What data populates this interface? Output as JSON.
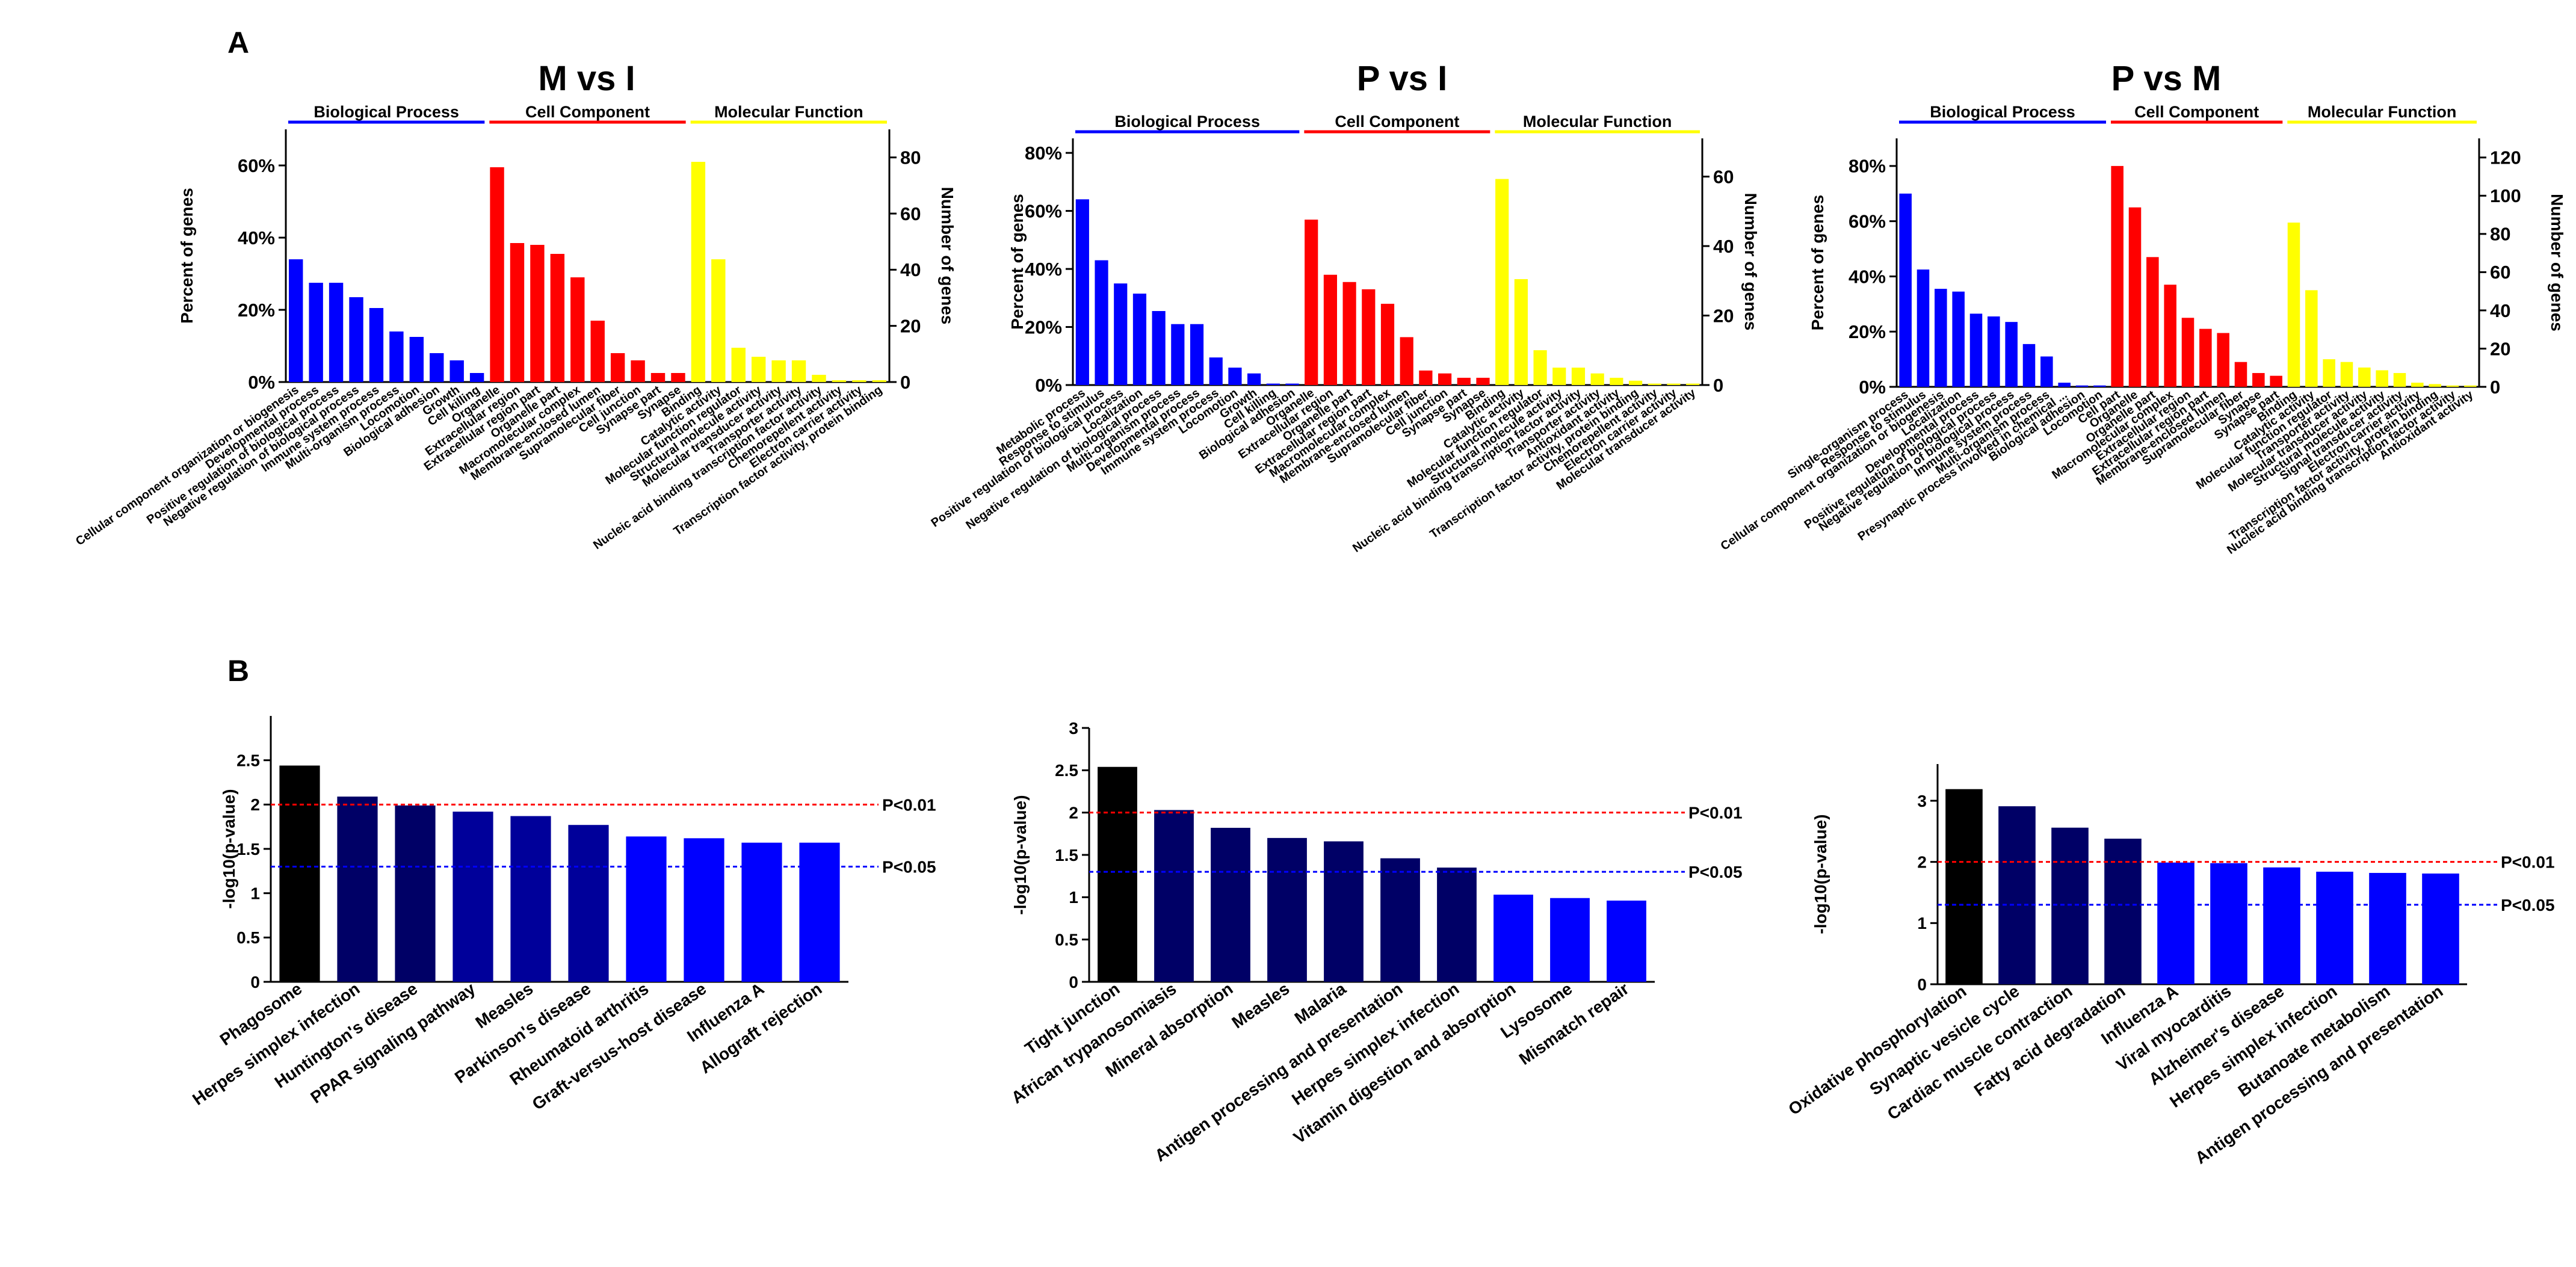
{
  "panel_labels": {
    "a": "A",
    "b": "B"
  },
  "colors": {
    "biological": "#0000ff",
    "cellular": "#ff0000",
    "molecular": "#ffff00",
    "black": "#000000",
    "navy": "#000066",
    "dark_blue": "#00009a",
    "blue": "#0000ff",
    "p01_line": "#ff0000",
    "p05_line": "#0000ff"
  },
  "chart_data": [
    {
      "id": "go_m_vs_i",
      "type": "bar",
      "title": "M vs I",
      "ylabel": "Percent of genes",
      "y2label": "Number of genes",
      "ylim": [
        0,
        70
      ],
      "yticks": [
        0,
        20,
        40,
        60
      ],
      "ytick_labels": [
        "0%",
        "20%",
        "40%",
        "60%"
      ],
      "y2lim": [
        0,
        90
      ],
      "y2ticks": [
        0,
        20,
        40,
        60,
        80
      ],
      "groups": [
        {
          "name": "Biological Process",
          "color": "biological",
          "start": 0,
          "count": 10
        },
        {
          "name": "Cell Component",
          "color": "cellular",
          "start": 10,
          "count": 10
        },
        {
          "name": "Molecular Function",
          "color": "molecular",
          "start": 20,
          "count": 10
        }
      ],
      "categories": [
        "Cellular component organization or biogenesis",
        "Developmental process",
        "Positive regulation of biological process",
        "Negative regulation of biological process",
        "Immune system process",
        "Multi-organism process",
        "Locomotion",
        "Biological adhesion",
        "Growth",
        "Cell killing",
        "Organelle",
        "Extracellular region",
        "Extracellular region part",
        "Organelle part",
        "Macromolecular complex",
        "Membrane-enclosed lumen",
        "Supramolecular fiber",
        "Cell junction",
        "Synapse part",
        "Synapse",
        "Binding",
        "Catalytic activity",
        "Molecular function regulator",
        "Structural molecule activity",
        "Molecular transducer activity",
        "Transporter activity",
        "Nucleic acid binding transcription factor activity",
        "Chemorepellent activity",
        "Electron carrier activity",
        "Transcription factor activity, protein binding"
      ],
      "values": [
        34,
        27.5,
        27.5,
        23.5,
        20.5,
        14,
        12.5,
        8,
        6,
        2.5,
        59.5,
        38.5,
        38,
        35.5,
        29,
        17,
        8,
        6,
        2.5,
        2.5,
        61,
        34,
        9.5,
        7,
        6,
        6,
        2,
        0.5,
        0.5,
        0.5
      ]
    },
    {
      "id": "go_p_vs_i",
      "type": "bar",
      "title": "P vs I",
      "ylabel": "Percent of genes",
      "y2label": "Number of genes",
      "ylim": [
        0,
        85
      ],
      "yticks": [
        0,
        20,
        40,
        60,
        80
      ],
      "ytick_labels": [
        "0%",
        "20%",
        "40%",
        "60%",
        "80%"
      ],
      "y2lim": [
        0,
        71
      ],
      "y2ticks": [
        0,
        20,
        40,
        60
      ],
      "groups": [
        {
          "name": "Biological Process",
          "color": "biological",
          "start": 0,
          "count": 12
        },
        {
          "name": "Cell Component",
          "color": "cellular",
          "start": 12,
          "count": 10
        },
        {
          "name": "Molecular Function",
          "color": "molecular",
          "start": 22,
          "count": 11
        }
      ],
      "categories": [
        "Metabolic process",
        "Response to stimulus",
        "Positive regulation of biological process",
        "Localization",
        "Negative regulation of biological process",
        "Multi-organism process",
        "Developmental process",
        "Immune system process",
        "Locomotion",
        "Growth",
        "Cell killing",
        "Biological adhesion",
        "Organelle",
        "Extracellular region",
        "Organelle part",
        "Extracellular region part",
        "Macromolecular complex",
        "Membrane-enclosed lumen",
        "Supramolecular fiber",
        "Cell junction",
        "Synapse part",
        "Synapse",
        "Binding",
        "Catalytic activity",
        "Molecular function regulator",
        "Structural molecule activity",
        "Nucleic acid binding transcription factor activity",
        "Transporter activity",
        "Antioxidant activity",
        "Transcription factor activity, protein binding",
        "Chemorepellent activity",
        "Electron carrier activity",
        "Molecular transducer activity"
      ],
      "values": [
        64,
        43,
        35,
        31.5,
        25.5,
        21,
        21,
        9.5,
        6,
        4,
        0.5,
        0.5,
        57,
        38,
        35.5,
        33,
        28,
        16.5,
        5,
        4,
        2.5,
        2.5,
        71,
        36.5,
        12,
        6,
        6,
        4,
        2.5,
        1.5,
        0.5,
        0.5,
        0.5
      ]
    },
    {
      "id": "go_p_vs_m",
      "type": "bar",
      "title": "P vs M",
      "ylabel": "Percent of genes",
      "y2label": "Number of genes",
      "ylim": [
        0,
        90
      ],
      "yticks": [
        0,
        20,
        40,
        60,
        80
      ],
      "ytick_labels": [
        "0%",
        "20%",
        "40%",
        "60%",
        "80%"
      ],
      "y2lim": [
        0,
        130
      ],
      "y2ticks": [
        0,
        20,
        40,
        60,
        80,
        100,
        120
      ],
      "groups": [
        {
          "name": "Biological Process",
          "color": "biological",
          "start": 0,
          "count": 12
        },
        {
          "name": "Cell Component",
          "color": "cellular",
          "start": 12,
          "count": 10
        },
        {
          "name": "Molecular Function",
          "color": "molecular",
          "start": 22,
          "count": 11
        }
      ],
      "categories": [
        "Single-organism process",
        "Response to stimulus",
        "Cellular component organization or biogenesis",
        "Localization",
        "Developmental process",
        "Positive regulation of biological process",
        "Negative regulation of biological process",
        "Immune system process",
        "Multi-organism process",
        "Presynaptic process involved in chemical ...",
        "Biological adhesion",
        "Locomotion",
        "Cell part",
        "Organelle",
        "Organelle part",
        "Macromolecular complex",
        "Extracellular region",
        "Extracellular region part",
        "Membrane-enclosed lumen",
        "Supramolecular fiber",
        "Synapse",
        "Synapse part",
        "Binding",
        "Catalytic activity",
        "Molecular function regulator",
        "Transporter activity",
        "Molecular transducer activity",
        "Structural molecule activity",
        "Signal transducer activity",
        "Electron carrier activity",
        "Transcription factor activity, protein binding",
        "Nucleic acid binding transcription factor activity",
        "Antioxidant activity"
      ],
      "values": [
        70,
        42.5,
        35.5,
        34.5,
        26.5,
        25.5,
        23.5,
        15.5,
        11,
        1.5,
        0.5,
        0.5,
        80,
        65,
        47,
        37,
        25,
        21,
        19.5,
        9,
        5,
        4,
        59.5,
        35,
        10,
        9,
        7,
        6,
        5,
        1.5,
        1,
        0.5,
        0.5
      ]
    },
    {
      "id": "kegg_m_vs_i",
      "type": "bar",
      "title": "",
      "ylabel": "-log10(p-value)",
      "ylim": [
        0,
        3
      ],
      "yticks": [
        0,
        0.5,
        1,
        1.5,
        2,
        2.5
      ],
      "ytick_labels": [
        "0",
        "0.5",
        "1",
        "1.5",
        "2",
        "2.5"
      ],
      "categories": [
        "Phagosome",
        "Herpes simplex infection",
        "Huntington's disease",
        "PPAR signaling pathway",
        "Measles",
        "Parkinson's disease",
        "Rheumatoid arthritis",
        "Graft-versus-host disease",
        "Influenza A",
        "Allograft rejection"
      ],
      "values": [
        2.44,
        2.09,
        1.99,
        1.92,
        1.87,
        1.77,
        1.64,
        1.62,
        1.57,
        1.57
      ],
      "bar_colors": [
        "black",
        "navy",
        "navy",
        "dark_blue",
        "dark_blue",
        "dark_blue",
        "blue",
        "blue",
        "blue",
        "blue"
      ],
      "thresholds": [
        {
          "value": 2,
          "label": "P<0.01",
          "color": "p01_line"
        },
        {
          "value": 1.3,
          "label": "P<0.05",
          "color": "p05_line"
        }
      ]
    },
    {
      "id": "kegg_p_vs_i",
      "type": "bar",
      "title": "",
      "ylabel": "-log10(p-value)",
      "ylim": [
        0,
        3
      ],
      "yticks": [
        0,
        0.5,
        1,
        1.5,
        2,
        2.5,
        3
      ],
      "ytick_labels": [
        "0",
        "0.5",
        "1",
        "1.5",
        "2",
        "2.5",
        "3"
      ],
      "categories": [
        "Tight junction",
        "African trypanosomiasis",
        "Mineral absorption",
        "Measles",
        "Malaria",
        "Antigen processing and presentation",
        "Herpes simplex infection",
        "Vitamin digestion and absorption",
        "Lysosome",
        "Mismatch repair"
      ],
      "values": [
        2.54,
        2.03,
        1.82,
        1.7,
        1.66,
        1.46,
        1.35,
        1.03,
        0.99,
        0.96
      ],
      "bar_colors": [
        "black",
        "navy",
        "navy",
        "navy",
        "navy",
        "navy",
        "navy",
        "blue",
        "blue",
        "blue"
      ],
      "thresholds": [
        {
          "value": 2,
          "label": "P<0.01",
          "color": "p01_line"
        },
        {
          "value": 1.3,
          "label": "P<0.05",
          "color": "p05_line"
        }
      ]
    },
    {
      "id": "kegg_p_vs_m",
      "type": "bar",
      "title": "",
      "ylabel": "-log10(p-value)",
      "ylim": [
        0,
        3.6
      ],
      "yticks": [
        0,
        1,
        2,
        3
      ],
      "ytick_labels": [
        "0",
        "1",
        "2",
        "3"
      ],
      "categories": [
        "Oxidative phosphorylation",
        "Synaptic vesicle cycle",
        "Cardiac muscle contraction",
        "Fatty acid degradation",
        "Influenza A",
        "Viral myocarditis",
        "Alzheimer's disease",
        "Herpes simplex infection",
        "Butanoate metabolism",
        "Antigen processing and presentation"
      ],
      "values": [
        3.19,
        2.91,
        2.56,
        2.38,
        1.99,
        1.98,
        1.91,
        1.84,
        1.82,
        1.81
      ],
      "bar_colors": [
        "black",
        "navy",
        "navy",
        "navy",
        "blue",
        "blue",
        "blue",
        "blue",
        "blue",
        "blue"
      ],
      "thresholds": [
        {
          "value": 2,
          "label": "P<0.01",
          "color": "p01_line"
        },
        {
          "value": 1.3,
          "label": "P<0.05",
          "color": "p05_line"
        }
      ]
    }
  ]
}
